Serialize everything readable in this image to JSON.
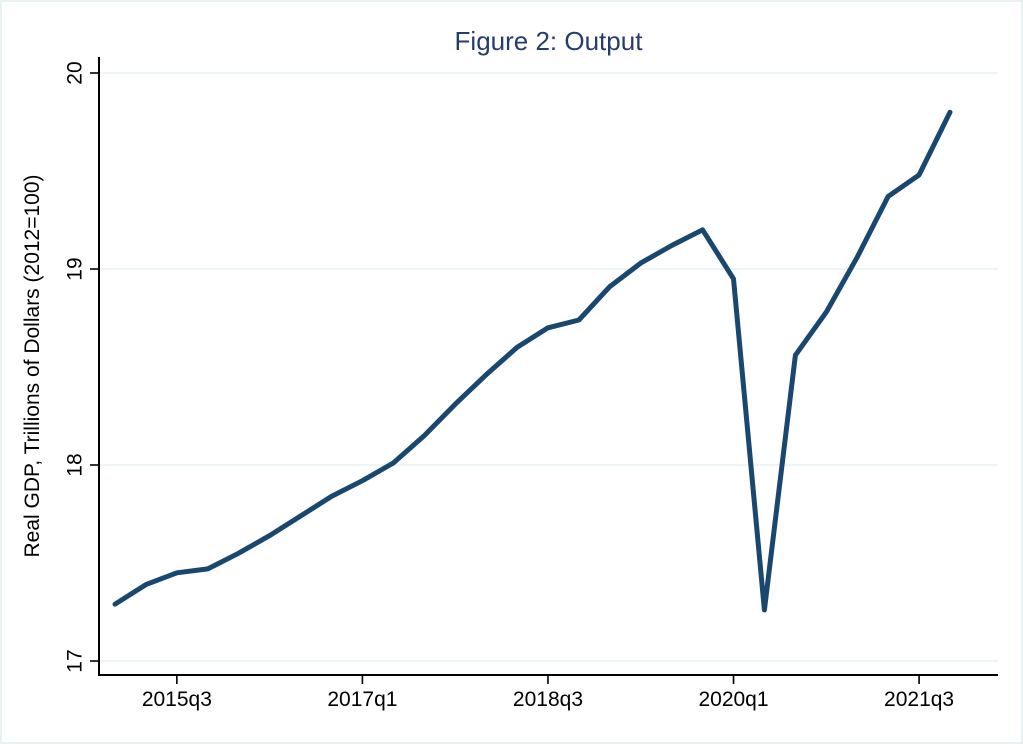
{
  "chart_data": {
    "type": "line",
    "title": "Figure 2: Output",
    "xlabel": "",
    "ylabel": "Real GDP, Trillions of Dollars (2012=100)",
    "x": [
      "2015q1",
      "2015q2",
      "2015q3",
      "2015q4",
      "2016q1",
      "2016q2",
      "2016q3",
      "2016q4",
      "2017q1",
      "2017q2",
      "2017q3",
      "2017q4",
      "2018q1",
      "2018q2",
      "2018q3",
      "2018q4",
      "2019q1",
      "2019q2",
      "2019q3",
      "2019q4",
      "2020q1",
      "2020q2",
      "2020q3",
      "2020q4",
      "2021q1",
      "2021q2",
      "2021q3",
      "2021q4"
    ],
    "values": [
      17.29,
      17.39,
      17.45,
      17.47,
      17.55,
      17.64,
      17.74,
      17.84,
      17.92,
      18.01,
      18.15,
      18.31,
      18.46,
      18.6,
      18.7,
      18.74,
      18.91,
      19.03,
      19.12,
      19.2,
      18.95,
      17.26,
      18.56,
      18.78,
      19.06,
      19.37,
      19.48,
      19.8
    ],
    "ylim": [
      17,
      20
    ],
    "y_ticks": [
      17,
      18,
      19,
      20
    ],
    "x_ticks": [
      {
        "index": 2,
        "label": "2015q3"
      },
      {
        "index": 8,
        "label": "2017q1"
      },
      {
        "index": 14,
        "label": "2018q3"
      },
      {
        "index": 20,
        "label": "2020q1"
      },
      {
        "index": 26,
        "label": "2021q3"
      }
    ],
    "grid": true,
    "legend": "none",
    "colors": {
      "line": "#1a476f",
      "grid": "#e9f2f3",
      "title": "#263d6b",
      "axis": "#000000",
      "border": "#e9f1f2",
      "background": "#ffffff"
    }
  }
}
